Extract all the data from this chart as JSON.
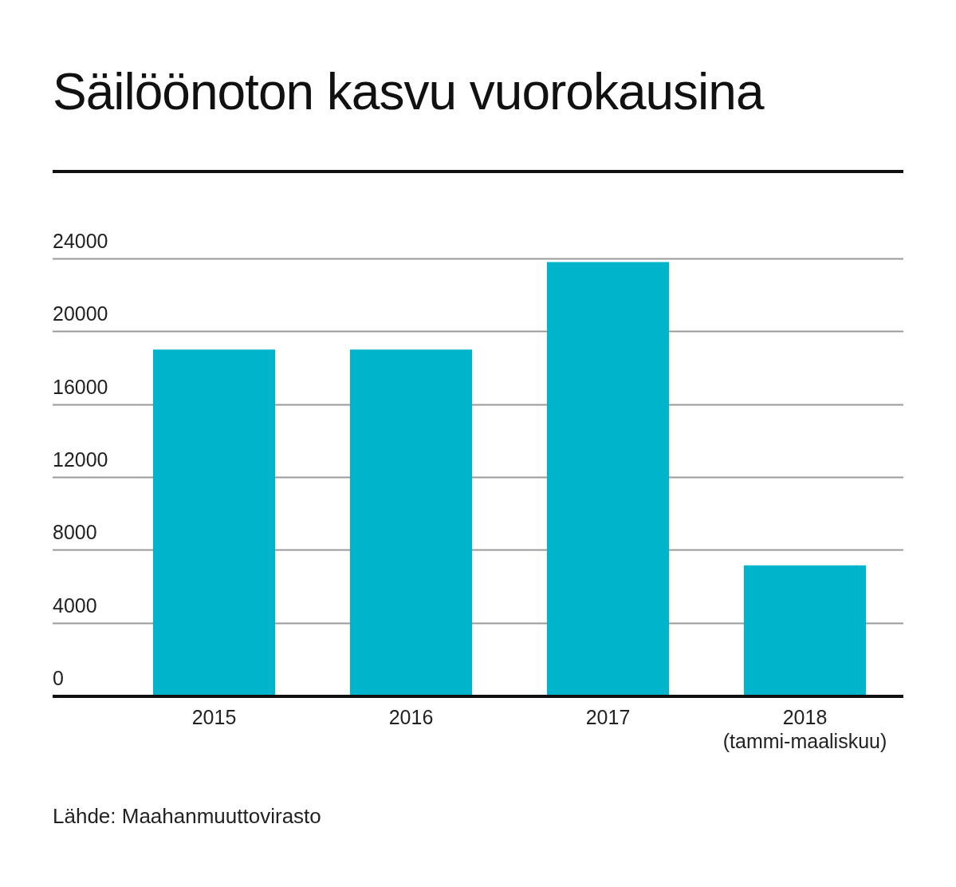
{
  "chart_data": {
    "type": "bar",
    "title": "Säilöönoton kasvu vuorokausina",
    "categories": [
      "2015",
      "2016",
      "2017",
      "2018 (tammi-maaliskuu)"
    ],
    "values": [
      19000,
      19000,
      23800,
      7150
    ],
    "color": "#00b5cb",
    "ylim": [
      0,
      24000
    ],
    "yticks": [
      0,
      4000,
      8000,
      12000,
      16000,
      20000,
      24000
    ],
    "grid": "y",
    "annotations": [
      "Lähde: Maahanmuuttovirasto"
    ]
  }
}
